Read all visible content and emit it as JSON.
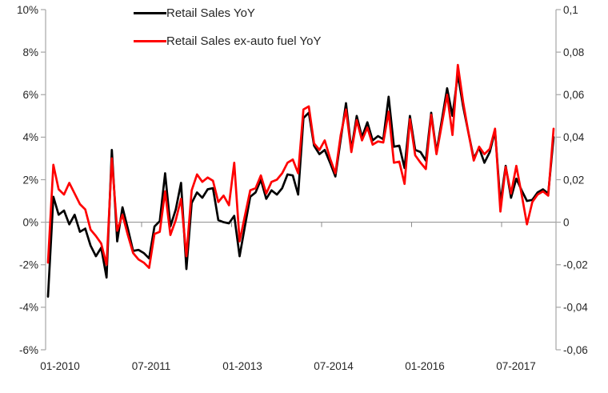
{
  "chart_data": {
    "type": "line",
    "title": "",
    "legend_position": "top",
    "grid": "zero-line-only",
    "months": [
      "01-2010",
      "02-2010",
      "03-2010",
      "04-2010",
      "05-2010",
      "06-2010",
      "07-2010",
      "08-2010",
      "09-2010",
      "10-2010",
      "11-2010",
      "12-2010",
      "01-2011",
      "02-2011",
      "03-2011",
      "04-2011",
      "05-2011",
      "06-2011",
      "07-2011",
      "08-2011",
      "09-2011",
      "10-2011",
      "11-2011",
      "12-2011",
      "01-2012",
      "02-2012",
      "03-2012",
      "04-2012",
      "05-2012",
      "06-2012",
      "07-2012",
      "08-2012",
      "09-2012",
      "10-2012",
      "11-2012",
      "12-2012",
      "01-2013",
      "02-2013",
      "03-2013",
      "04-2013",
      "05-2013",
      "06-2013",
      "07-2013",
      "08-2013",
      "09-2013",
      "10-2013",
      "11-2013",
      "12-2013",
      "01-2014",
      "02-2014",
      "03-2014",
      "04-2014",
      "05-2014",
      "06-2014",
      "07-2014",
      "08-2014",
      "09-2014",
      "10-2014",
      "11-2014",
      "12-2014",
      "01-2015",
      "02-2015",
      "03-2015",
      "04-2015",
      "05-2015",
      "06-2015",
      "07-2015",
      "08-2015",
      "09-2015",
      "10-2015",
      "11-2015",
      "12-2015",
      "01-2016",
      "02-2016",
      "03-2016",
      "04-2016",
      "05-2016",
      "06-2016",
      "07-2016",
      "08-2016",
      "09-2016",
      "10-2016",
      "11-2016",
      "12-2016",
      "01-2017",
      "02-2017",
      "03-2017",
      "04-2017",
      "05-2017",
      "06-2017",
      "07-2017",
      "08-2017",
      "09-2017",
      "10-2017",
      "11-2017",
      "12-2017"
    ],
    "series": [
      {
        "name": "Retail Sales YoY",
        "color": "#000000",
        "unit": "percent",
        "values": [
          -3.5,
          1.2,
          0.35,
          0.55,
          -0.1,
          0.35,
          -0.45,
          -0.3,
          -1.1,
          -1.6,
          -1.2,
          -2.6,
          3.4,
          -0.9,
          0.7,
          -0.3,
          -1.35,
          -1.3,
          -1.45,
          -1.7,
          -0.2,
          0.05,
          2.3,
          -0.2,
          0.6,
          1.85,
          -2.2,
          0.9,
          1.4,
          1.15,
          1.55,
          1.6,
          0.1,
          0,
          -0.05,
          0.3,
          -1.6,
          -0.2,
          1.2,
          1.4,
          2.0,
          1.1,
          1.5,
          1.3,
          1.6,
          2.25,
          2.2,
          1.3,
          4.9,
          5.15,
          3.6,
          3.2,
          3.4,
          2.8,
          2.15,
          3.9,
          5.6,
          3.4,
          5.0,
          4.0,
          4.7,
          3.85,
          4.05,
          3.9,
          5.9,
          3.55,
          3.6,
          2.55,
          5.0,
          3.4,
          3.3,
          2.9,
          5.15,
          3.3,
          4.8,
          6.3,
          5.0,
          6.95,
          5.45,
          4.2,
          3.0,
          3.5,
          2.8,
          3.3,
          4.3,
          0.9,
          2.65,
          1.15,
          2.05,
          1.5,
          1.0,
          1.05,
          1.4,
          1.55,
          1.35,
          4.0
        ]
      },
      {
        "name": "Retail Sales ex-auto fuel YoY",
        "color": "#ff0000",
        "unit": "percent",
        "values": [
          -1.9,
          2.7,
          1.55,
          1.3,
          1.85,
          1.35,
          0.85,
          0.6,
          -0.35,
          -0.65,
          -1.0,
          -2.0,
          3.0,
          -0.4,
          0.35,
          -0.6,
          -1.45,
          -1.75,
          -1.9,
          -2.15,
          -0.55,
          -0.45,
          1.45,
          -0.6,
          0.1,
          1.1,
          -1.6,
          1.5,
          2.25,
          1.9,
          2.1,
          1.95,
          0.95,
          1.25,
          0.8,
          2.8,
          -0.9,
          0.3,
          1.5,
          1.6,
          2.2,
          1.35,
          1.9,
          2.0,
          2.3,
          2.8,
          2.95,
          2.3,
          5.3,
          5.45,
          3.7,
          3.4,
          3.85,
          3.0,
          2.3,
          4.1,
          5.3,
          3.3,
          4.8,
          3.85,
          4.45,
          3.65,
          3.8,
          3.75,
          5.2,
          2.8,
          2.85,
          1.8,
          4.85,
          3.15,
          2.8,
          2.5,
          5.05,
          3.2,
          4.6,
          6.0,
          4.1,
          7.4,
          5.65,
          4.2,
          2.9,
          3.55,
          3.2,
          3.45,
          4.4,
          0.5,
          2.6,
          1.35,
          2.65,
          1.3,
          -0.1,
          0.95,
          1.3,
          1.45,
          1.25,
          4.4
        ]
      }
    ],
    "left_axis": {
      "ticks": [
        "10%",
        "8%",
        "6%",
        "4%",
        "2%",
        "0%",
        "-2%",
        "-4%",
        "-6%"
      ],
      "tick_values": [
        10,
        8,
        6,
        4,
        2,
        0,
        -2,
        -4,
        -6
      ],
      "min": -6,
      "max": 10
    },
    "right_axis": {
      "ticks": [
        "0,1",
        "0,08",
        "0,06",
        "0,04",
        "0,02",
        "0",
        "-0,02",
        "-0,04",
        "-0,06"
      ],
      "tick_values": [
        0.1,
        0.08,
        0.06,
        0.04,
        0.02,
        0,
        -0.02,
        -0.04,
        -0.06
      ],
      "min": -0.06,
      "max": 0.1
    },
    "x_axis": {
      "labels": [
        "01-2010",
        "07-2011",
        "01-2013",
        "07-2014",
        "01-2016",
        "07-2017"
      ],
      "freq": "monthly",
      "start": "01-2010",
      "end": "12-2017"
    },
    "colors": {
      "axis_line": "#a6a6a6",
      "zero_line": "#8c8c8c",
      "tick_text": "#262626",
      "background": "#ffffff"
    }
  }
}
